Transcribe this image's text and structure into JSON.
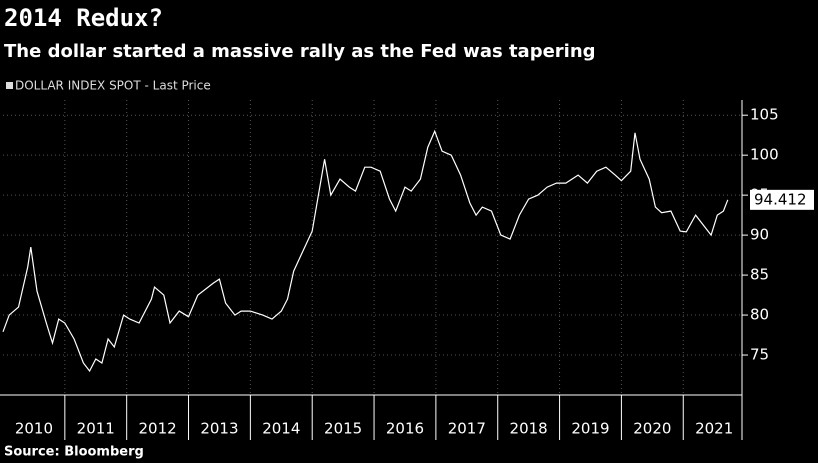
{
  "chart_data": {
    "type": "line",
    "title": "2014 Redux?",
    "subtitle": "The dollar started a massive rally as the Fed was tapering",
    "source": "Source: Bloomberg",
    "years": [
      2010,
      2011,
      2012,
      2013,
      2014,
      2015,
      2016,
      2017,
      2018,
      2019,
      2020,
      2021
    ],
    "xlim": [
      2010,
      2021.95
    ],
    "ylim": [
      70,
      106.9
    ],
    "yticks": [
      75,
      80,
      85,
      90,
      95,
      100,
      105
    ],
    "grid": true,
    "last_value": 94.412,
    "series": [
      {
        "name": "DOLLAR INDEX SPOT - Last Price",
        "color": "#ffffff",
        "x": [
          2010.0,
          2010.1,
          2010.25,
          2010.4,
          2010.45,
          2010.55,
          2010.7,
          2010.8,
          2010.9,
          2011.0,
          2011.15,
          2011.3,
          2011.4,
          2011.5,
          2011.6,
          2011.7,
          2011.8,
          2011.95,
          2012.05,
          2012.2,
          2012.4,
          2012.45,
          2012.6,
          2012.7,
          2012.85,
          2013.0,
          2013.15,
          2013.4,
          2013.5,
          2013.6,
          2013.75,
          2013.85,
          2014.0,
          2014.2,
          2014.35,
          2014.5,
          2014.6,
          2014.7,
          2014.85,
          2015.0,
          2015.1,
          2015.2,
          2015.3,
          2015.45,
          2015.6,
          2015.7,
          2015.85,
          2015.95,
          2016.1,
          2016.25,
          2016.35,
          2016.5,
          2016.6,
          2016.75,
          2016.87,
          2016.98,
          2017.1,
          2017.25,
          2017.4,
          2017.55,
          2017.65,
          2017.75,
          2017.9,
          2018.05,
          2018.2,
          2018.35,
          2018.5,
          2018.65,
          2018.8,
          2018.95,
          2019.1,
          2019.3,
          2019.45,
          2019.6,
          2019.75,
          2019.9,
          2020.0,
          2020.15,
          2020.22,
          2020.3,
          2020.45,
          2020.55,
          2020.65,
          2020.8,
          2020.95,
          2021.05,
          2021.2,
          2021.35,
          2021.45,
          2021.55,
          2021.65,
          2021.72
        ],
        "values": [
          77.9,
          80,
          81,
          86,
          88.5,
          83,
          79,
          76.5,
          79.5,
          79,
          77,
          74,
          73,
          74.5,
          74,
          77,
          76,
          80,
          79.5,
          79,
          82,
          83.5,
          82.5,
          79,
          80.5,
          79.8,
          82.5,
          84,
          84.5,
          81.5,
          80,
          80.5,
          80.5,
          80,
          79.5,
          80.5,
          82,
          85.5,
          88,
          90.5,
          95,
          99.5,
          95,
          97,
          96,
          95.5,
          98.5,
          98.5,
          98,
          94.5,
          93,
          96,
          95.5,
          97,
          101,
          103,
          100.5,
          100,
          97.5,
          94,
          92.5,
          93.5,
          93,
          90,
          89.5,
          92.5,
          94.5,
          95,
          96,
          96.5,
          96.5,
          97.5,
          96.5,
          98,
          98.5,
          97.5,
          96.8,
          98,
          102.8,
          99.5,
          97,
          93.5,
          92.8,
          93,
          90.5,
          90.4,
          92.5,
          91,
          90,
          92.5,
          93,
          94.412
        ]
      }
    ]
  }
}
